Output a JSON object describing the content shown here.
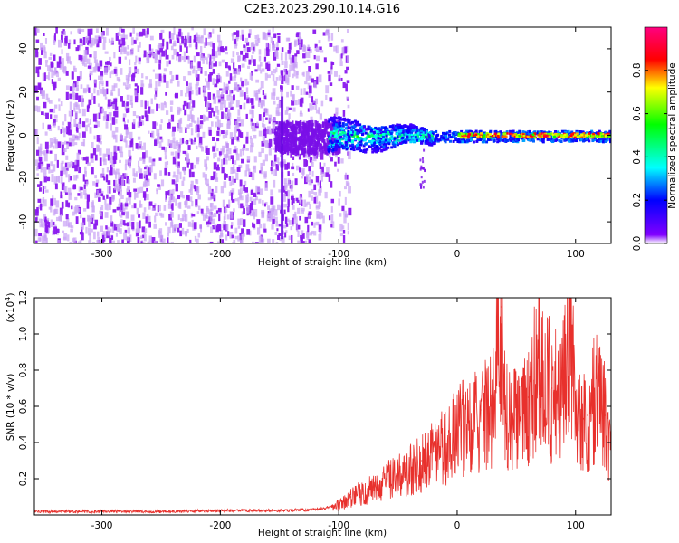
{
  "title": "C2E3.2023.290.10.14.G16",
  "chart_data": [
    {
      "type": "heatmap",
      "title": "C2E3.2023.290.10.14.G16",
      "xlabel": "Height of straight line (km)",
      "ylabel": "Frequency (Hz)",
      "xlim": [
        -357,
        130
      ],
      "ylim": [
        -50,
        50
      ],
      "xticks": [
        -300,
        -200,
        -100,
        0,
        100
      ],
      "yticks": [
        -40,
        -20,
        0,
        20,
        40
      ],
      "xtick_labels": [
        "-300",
        "-200",
        "-100",
        "0",
        "100"
      ],
      "ytick_labels": [
        "-40",
        "-20",
        "0",
        "20",
        "40"
      ],
      "colorbar": {
        "label": "Normalized spectral amplitude",
        "range": [
          0,
          1
        ],
        "ticks": [
          0.0,
          0.2,
          0.4,
          0.6,
          0.8
        ],
        "tick_labels": [
          "0.0",
          "0.2",
          "0.4",
          "0.6",
          "0.8"
        ],
        "colors": [
          "#ffffff",
          "#8000ff",
          "#0000ff",
          "#00ffff",
          "#00ff00",
          "#ffff00",
          "#ff0000",
          "#ff0080"
        ]
      },
      "features": [
        {
          "range_km": [
            -357,
            -110
          ],
          "freq_hz": [
            -50,
            50
          ],
          "amplitude": 0.1,
          "description": "broadband noise"
        },
        {
          "range_km": [
            -110,
            -20
          ],
          "freq_hz": [
            -8,
            8
          ],
          "amplitude": 0.3
        },
        {
          "range_km": [
            0,
            130
          ],
          "freq_hz": [
            -1,
            1
          ],
          "amplitude": 0.85
        }
      ]
    },
    {
      "type": "line",
      "xlabel": "Height of straight line (km)",
      "ylabel": "SNR (10 * v/v)",
      "y_multiplier_label": "(x10",
      "y_multiplier_exp": "4",
      "y_multiplier_close": ")",
      "xlim": [
        -357,
        130
      ],
      "ylim": [
        0,
        1.2
      ],
      "xticks": [
        -300,
        -200,
        -100,
        0,
        100
      ],
      "yticks": [
        0.2,
        0.4,
        0.6,
        0.8,
        1.0,
        1.2
      ],
      "xtick_labels": [
        "-300",
        "-200",
        "-100",
        "0",
        "100"
      ],
      "ytick_labels": [
        "0.2",
        "0.4",
        "0.6",
        "0.8",
        "1.0",
        "1.2"
      ],
      "color": "#e8302c",
      "series": [
        {
          "name": "SNR",
          "x": [
            -357,
            -300,
            -250,
            -200,
            -150,
            -120,
            -110,
            -100,
            -90,
            -80,
            -70,
            -60,
            -50,
            -40,
            -30,
            -20,
            -10,
            0,
            10,
            20,
            30,
            37,
            40,
            50,
            60,
            70,
            80,
            90,
            95,
            100,
            110,
            120,
            125,
            130
          ],
          "y": [
            0.02,
            0.02,
            0.02,
            0.025,
            0.025,
            0.03,
            0.04,
            0.06,
            0.1,
            0.13,
            0.16,
            0.2,
            0.23,
            0.26,
            0.3,
            0.35,
            0.4,
            0.48,
            0.52,
            0.58,
            0.6,
            1.15,
            0.62,
            0.55,
            0.65,
            0.9,
            0.7,
            0.72,
            1.2,
            0.6,
            0.55,
            0.75,
            0.55,
            0.4
          ]
        }
      ]
    }
  ]
}
